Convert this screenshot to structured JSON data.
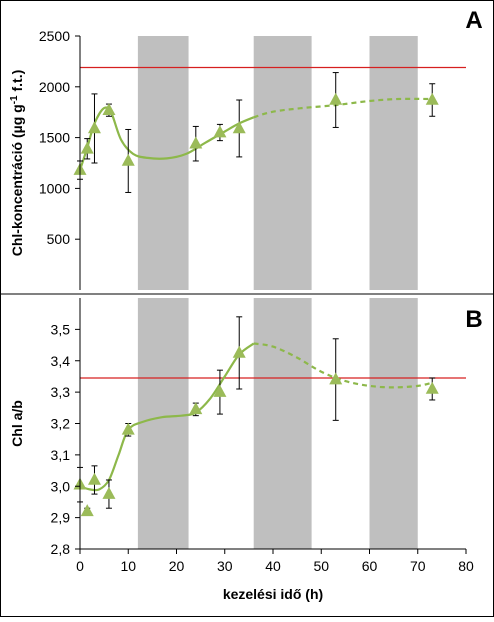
{
  "chart_data": [
    {
      "panel_label": "A",
      "type": "scatter",
      "ylabel_pre": "Chl-koncentráció (µg g",
      "ylabel_sup": "-1",
      "ylabel_post": " f.t.)",
      "ylim": [
        0,
        2500
      ],
      "yticks": [
        500,
        1000,
        1500,
        2000,
        2500
      ],
      "ytick_labels": [
        "500",
        "1000",
        "1500",
        "2000",
        "2500"
      ],
      "reference_line": 2190,
      "dark_periods": [
        [
          12,
          22.5
        ],
        [
          36,
          48
        ],
        [
          60,
          70
        ]
      ],
      "series": [
        {
          "x": [
            0,
            1.5,
            3,
            6,
            10,
            24,
            29,
            33,
            53,
            73
          ],
          "y": [
            1180,
            1390,
            1590,
            1770,
            1270,
            1440,
            1550,
            1590,
            1870,
            1870
          ],
          "err": [
            90,
            100,
            340,
            60,
            310,
            170,
            80,
            280,
            270,
            160
          ]
        }
      ],
      "fit_solid": [
        [
          0,
          1180
        ],
        [
          1.5,
          1400
        ],
        [
          3,
          1640
        ],
        [
          5,
          1790
        ],
        [
          6.5,
          1740
        ],
        [
          8.5,
          1480
        ],
        [
          11,
          1340
        ],
        [
          14,
          1300
        ],
        [
          18,
          1295
        ],
        [
          22,
          1340
        ],
        [
          26,
          1450
        ],
        [
          30,
          1560
        ],
        [
          33,
          1640
        ],
        [
          36,
          1700
        ]
      ],
      "fit_dashed": [
        [
          36,
          1700
        ],
        [
          40,
          1755
        ],
        [
          46,
          1790
        ],
        [
          53,
          1820
        ],
        [
          60,
          1860
        ],
        [
          66,
          1880
        ],
        [
          73,
          1880
        ]
      ],
      "colors": {
        "marker": "#9bbb59",
        "fit": "#8db84a",
        "reference": "#d62020",
        "dark": "#bfbfbf"
      }
    },
    {
      "panel_label": "B",
      "type": "scatter",
      "xlabel": "kezelési idő (h)",
      "ylabel": "Chl a/b",
      "xlim": [
        0,
        80
      ],
      "xticks": [
        0,
        10,
        20,
        30,
        40,
        50,
        60,
        70,
        80
      ],
      "xtick_labels": [
        "0",
        "10",
        "20",
        "30",
        "40",
        "50",
        "60",
        "70",
        "80"
      ],
      "ylim": [
        2.8,
        3.6
      ],
      "yticks": [
        2.8,
        2.9,
        3.0,
        3.1,
        3.2,
        3.3,
        3.4,
        3.5
      ],
      "ytick_labels": [
        "2,8",
        "2,9",
        "3,0",
        "3,1",
        "3,2",
        "3,3",
        "3,4",
        "3,5"
      ],
      "reference_line": 3.345,
      "dark_periods": [
        [
          12,
          22.5
        ],
        [
          36,
          48
        ],
        [
          60,
          70
        ]
      ],
      "series": [
        {
          "x": [
            0,
            1.5,
            3,
            6,
            10,
            24,
            29,
            33,
            53,
            73
          ],
          "y": [
            3.005,
            2.92,
            3.02,
            2.975,
            3.18,
            3.245,
            3.3,
            3.425,
            3.34,
            3.31
          ],
          "err": [
            0.055,
            0.01,
            0.045,
            0.045,
            0.02,
            0.02,
            0.07,
            0.115,
            0.13,
            0.035
          ]
        }
      ],
      "fit_solid": [
        [
          0,
          3.0
        ],
        [
          2,
          2.99
        ],
        [
          4,
          2.99
        ],
        [
          6,
          3.02
        ],
        [
          8,
          3.1
        ],
        [
          10,
          3.18
        ],
        [
          13,
          3.205
        ],
        [
          17,
          3.22
        ],
        [
          21,
          3.225
        ],
        [
          24,
          3.235
        ],
        [
          27,
          3.28
        ],
        [
          30,
          3.35
        ],
        [
          33,
          3.42
        ],
        [
          36,
          3.455
        ]
      ],
      "fit_dashed": [
        [
          36,
          3.455
        ],
        [
          40,
          3.445
        ],
        [
          45,
          3.41
        ],
        [
          50,
          3.365
        ],
        [
          55,
          3.335
        ],
        [
          60,
          3.32
        ],
        [
          65,
          3.315
        ],
        [
          70,
          3.32
        ],
        [
          73,
          3.33
        ]
      ],
      "colors": {
        "marker": "#9bbb59",
        "fit": "#8db84a",
        "reference": "#d62020",
        "dark": "#bfbfbf"
      }
    }
  ]
}
